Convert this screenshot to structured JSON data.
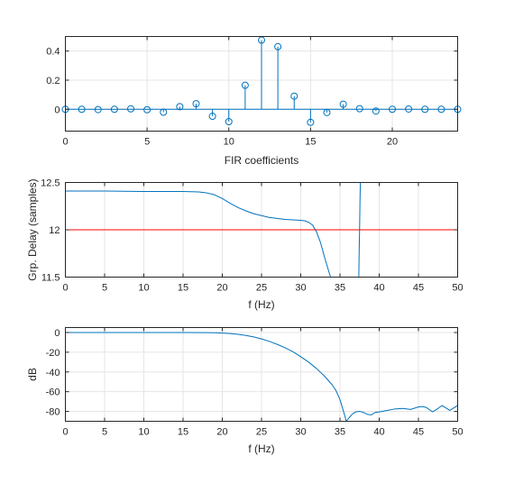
{
  "chart_data": [
    {
      "type": "stem",
      "title": "",
      "xlabel": "FIR coefficients",
      "ylabel": "",
      "xlim": [
        0,
        24
      ],
      "ylim": [
        -0.15,
        0.5
      ],
      "grid": true,
      "xticks": [
        0,
        5,
        10,
        15,
        20
      ],
      "yticks": [
        0,
        0.2,
        0.4
      ],
      "ytick_labels": [
        "0",
        "0.2",
        "0.4"
      ],
      "color": "#0072BD",
      "x": [
        0,
        1,
        2,
        3,
        4,
        5,
        6,
        7,
        8,
        9,
        10,
        11,
        12,
        13,
        14,
        15,
        16,
        17,
        18,
        19,
        20,
        21,
        22,
        23,
        24
      ],
      "y": [
        0.0,
        0.0,
        -0.002,
        0.0,
        0.003,
        -0.003,
        -0.02,
        0.018,
        0.038,
        -0.048,
        -0.085,
        0.165,
        0.475,
        0.43,
        0.09,
        -0.09,
        -0.022,
        0.035,
        0.004,
        -0.012,
        0.0,
        0.002,
        0.0,
        0.0,
        0.0
      ]
    },
    {
      "type": "line",
      "title": "",
      "xlabel": "f (Hz)",
      "ylabel": "Grp. Delay (samples)",
      "xlim": [
        0,
        50
      ],
      "ylim": [
        11.5,
        12.5
      ],
      "grid": true,
      "xticks": [
        0,
        5,
        10,
        15,
        20,
        25,
        30,
        35,
        40,
        45,
        50
      ],
      "yticks": [
        11.5,
        12,
        12.5
      ],
      "ytick_labels": [
        "11.5",
        "12",
        "12.5"
      ],
      "series": [
        {
          "color": "#0072BD",
          "x": [
            0,
            5,
            10,
            15,
            17,
            18,
            19,
            20,
            21,
            22,
            23,
            24,
            25,
            26,
            27,
            28,
            29,
            30,
            30.5,
            31,
            31.5,
            32,
            32.5,
            33,
            33.5,
            33.8
          ],
          "y": [
            12.41,
            12.41,
            12.405,
            12.405,
            12.4,
            12.39,
            12.37,
            12.33,
            12.28,
            12.235,
            12.2,
            12.17,
            12.15,
            12.13,
            12.12,
            12.11,
            12.105,
            12.1,
            12.095,
            12.08,
            12.05,
            11.98,
            11.87,
            11.72,
            11.58,
            11.5
          ]
        },
        {
          "color": "#0072BD",
          "x": [
            37.4,
            37.45,
            37.5,
            37.55,
            37.6
          ],
          "y": [
            11.5,
            11.8,
            12.0,
            12.3,
            12.5
          ]
        },
        {
          "color": "#FF0000",
          "x": [
            0,
            50
          ],
          "y": [
            12,
            12
          ]
        }
      ]
    },
    {
      "type": "line",
      "title": "",
      "xlabel": "f (Hz)",
      "ylabel": "dB",
      "xlim": [
        0,
        50
      ],
      "ylim": [
        -90,
        5
      ],
      "grid": true,
      "xticks": [
        0,
        5,
        10,
        15,
        20,
        25,
        30,
        35,
        40,
        45,
        50
      ],
      "yticks": [
        0,
        -20,
        -40,
        -60,
        -80
      ],
      "ytick_labels": [
        "0",
        "-20",
        "-40",
        "-60",
        "-80"
      ],
      "series": [
        {
          "color": "#0072BD",
          "x": [
            0,
            5,
            10,
            15,
            18,
            19,
            20,
            21,
            22,
            23,
            24,
            25,
            26,
            27,
            28,
            29,
            30,
            31,
            32,
            33,
            34,
            34.5,
            35,
            35.3,
            35.6,
            35.8,
            36.2,
            36.6,
            37,
            37.5,
            38,
            38.5,
            39,
            39.5,
            40,
            41,
            42,
            43,
            44,
            45,
            45.5,
            46,
            46.8,
            47.5,
            48,
            49,
            50
          ],
          "y": [
            0,
            0,
            0,
            0,
            -0.1,
            -0.3,
            -0.6,
            -1.1,
            -1.9,
            -3.0,
            -4.5,
            -6.5,
            -9.0,
            -12.0,
            -15.5,
            -19.5,
            -24.5,
            -30.0,
            -36.5,
            -44.0,
            -53.0,
            -59.0,
            -68.0,
            -76.0,
            -84.0,
            -90.0,
            -86.0,
            -82.5,
            -80.5,
            -80.0,
            -81.0,
            -83.0,
            -83.5,
            -81.0,
            -80.5,
            -79.0,
            -77.5,
            -77.0,
            -78.0,
            -75.5,
            -75.0,
            -76.0,
            -80.5,
            -77.0,
            -74.0,
            -79.0,
            -74.0
          ]
        }
      ]
    }
  ]
}
